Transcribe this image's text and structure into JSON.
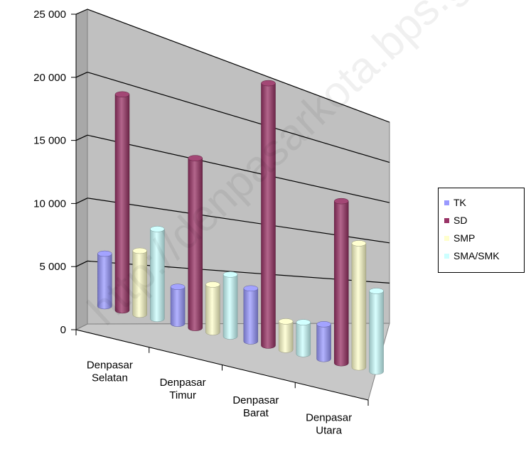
{
  "chart_data": {
    "type": "bar",
    "title": "",
    "xlabel": "",
    "ylabel": "",
    "ylim": [
      0,
      25000
    ],
    "y_ticks": [
      "0",
      "5 000",
      "10 000",
      "15 000",
      "20 000",
      "25 000"
    ],
    "y_tick_values": [
      0,
      5000,
      10000,
      15000,
      20000,
      25000
    ],
    "categories": [
      [
        "Denpasar",
        "Selatan"
      ],
      [
        "Denpasar",
        "Timur"
      ],
      [
        "Denpasar",
        "Barat"
      ],
      [
        "Denpasar",
        "Utara"
      ]
    ],
    "series": [
      {
        "name": "TK",
        "color": "#9999ff",
        "values": [
          4200,
          3200,
          5000,
          3600
        ]
      },
      {
        "name": "SD",
        "color": "#993366",
        "values": [
          17600,
          15000,
          25300,
          17200
        ]
      },
      {
        "name": "SMP",
        "color": "#ffffcc",
        "values": [
          5300,
          4300,
          2800,
          13500
        ]
      },
      {
        "name": "SMA/SMK",
        "color": "#ccffff",
        "values": [
          7600,
          5700,
          3200,
          9000
        ]
      }
    ],
    "grid": true,
    "legend_position": "right",
    "style": "3d-cylinder"
  },
  "watermark": "http://denpasarkota.bps.go.id"
}
